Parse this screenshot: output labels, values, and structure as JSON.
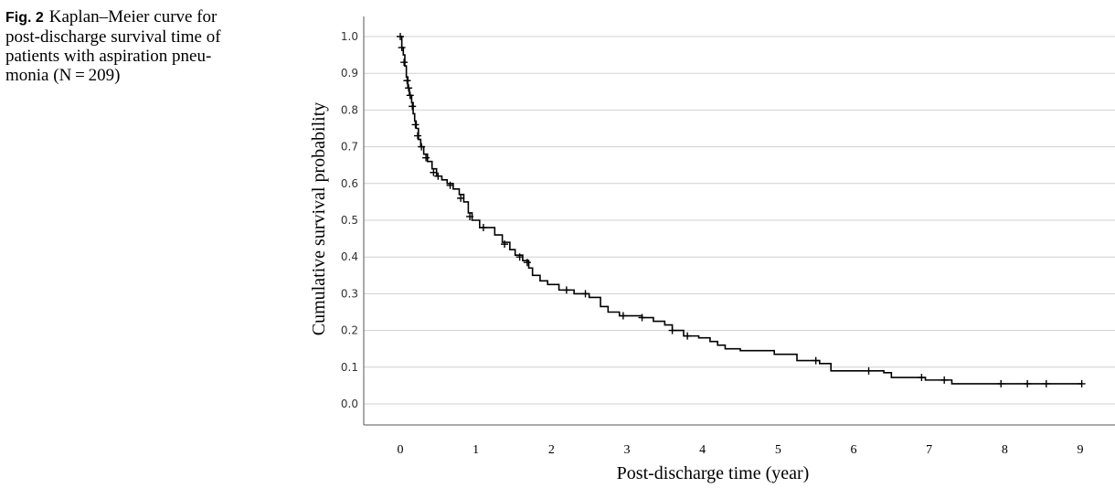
{
  "caption": {
    "fig_label": "Fig. 2",
    "lines": [
      "Kaplan–Meier curve for",
      "post-discharge survival time of",
      "patients with aspiration pneu-",
      "monia (N = 209)"
    ]
  },
  "chart_data": {
    "type": "line",
    "xlabel": "Post-discharge time (year)",
    "ylabel": "Cumulative survival probability",
    "xlim": [
      0,
      9
    ],
    "ylim": [
      0,
      1
    ],
    "x_ticks": [
      "0",
      "1",
      "2",
      "3",
      "4",
      "5",
      "6",
      "7",
      "8",
      "9"
    ],
    "y_ticks": [
      "0.0",
      "0.1",
      "0.2",
      "0.3",
      "0.4",
      "0.5",
      "0.6",
      "0.7",
      "0.8",
      "0.9",
      "1.0"
    ],
    "grid": "horizontal",
    "series": [
      {
        "style": "step",
        "points": [
          [
            0,
            1.0
          ],
          [
            0.02,
            0.97
          ],
          [
            0.04,
            0.95
          ],
          [
            0.06,
            0.92
          ],
          [
            0.08,
            0.89
          ],
          [
            0.1,
            0.86
          ],
          [
            0.12,
            0.84
          ],
          [
            0.15,
            0.82
          ],
          [
            0.17,
            0.79
          ],
          [
            0.19,
            0.77
          ],
          [
            0.21,
            0.75
          ],
          [
            0.24,
            0.72
          ],
          [
            0.27,
            0.7
          ],
          [
            0.31,
            0.68
          ],
          [
            0.36,
            0.66
          ],
          [
            0.42,
            0.64
          ],
          [
            0.48,
            0.62
          ],
          [
            0.55,
            0.61
          ],
          [
            0.62,
            0.6
          ],
          [
            0.7,
            0.585
          ],
          [
            0.78,
            0.57
          ],
          [
            0.84,
            0.55
          ],
          [
            0.9,
            0.52
          ],
          [
            0.95,
            0.5
          ],
          [
            1.05,
            0.48
          ],
          [
            1.25,
            0.46
          ],
          [
            1.35,
            0.44
          ],
          [
            1.45,
            0.42
          ],
          [
            1.52,
            0.405
          ],
          [
            1.62,
            0.39
          ],
          [
            1.7,
            0.37
          ],
          [
            1.75,
            0.35
          ],
          [
            1.85,
            0.335
          ],
          [
            1.95,
            0.325
          ],
          [
            2.1,
            0.31
          ],
          [
            2.3,
            0.3
          ],
          [
            2.5,
            0.29
          ],
          [
            2.65,
            0.265
          ],
          [
            2.75,
            0.25
          ],
          [
            2.9,
            0.24
          ],
          [
            3.2,
            0.235
          ],
          [
            3.35,
            0.225
          ],
          [
            3.5,
            0.215
          ],
          [
            3.6,
            0.2
          ],
          [
            3.75,
            0.185
          ],
          [
            3.95,
            0.18
          ],
          [
            4.1,
            0.17
          ],
          [
            4.2,
            0.16
          ],
          [
            4.3,
            0.15
          ],
          [
            4.5,
            0.145
          ],
          [
            4.95,
            0.135
          ],
          [
            5.25,
            0.118
          ],
          [
            5.55,
            0.11
          ],
          [
            5.7,
            0.09
          ],
          [
            6.4,
            0.085
          ],
          [
            6.5,
            0.072
          ],
          [
            6.95,
            0.065
          ],
          [
            7.3,
            0.055
          ],
          [
            9.02,
            0.055
          ]
        ],
        "censored": [
          [
            0.0,
            1.0
          ],
          [
            0.02,
            0.97
          ],
          [
            0.05,
            0.93
          ],
          [
            0.09,
            0.88
          ],
          [
            0.11,
            0.86
          ],
          [
            0.13,
            0.84
          ],
          [
            0.16,
            0.81
          ],
          [
            0.2,
            0.76
          ],
          [
            0.23,
            0.73
          ],
          [
            0.28,
            0.7
          ],
          [
            0.34,
            0.67
          ],
          [
            0.44,
            0.63
          ],
          [
            0.5,
            0.62
          ],
          [
            0.66,
            0.595
          ],
          [
            0.8,
            0.56
          ],
          [
            0.92,
            0.51
          ],
          [
            1.1,
            0.48
          ],
          [
            1.38,
            0.435
          ],
          [
            1.58,
            0.4
          ],
          [
            1.68,
            0.385
          ],
          [
            2.2,
            0.31
          ],
          [
            2.45,
            0.3
          ],
          [
            2.95,
            0.24
          ],
          [
            3.2,
            0.235
          ],
          [
            3.6,
            0.2
          ],
          [
            3.8,
            0.185
          ],
          [
            5.5,
            0.118
          ],
          [
            6.2,
            0.09
          ],
          [
            6.9,
            0.072
          ],
          [
            7.2,
            0.065
          ],
          [
            7.95,
            0.055
          ],
          [
            8.3,
            0.055
          ],
          [
            8.55,
            0.055
          ],
          [
            9.02,
            0.055
          ]
        ]
      }
    ]
  }
}
